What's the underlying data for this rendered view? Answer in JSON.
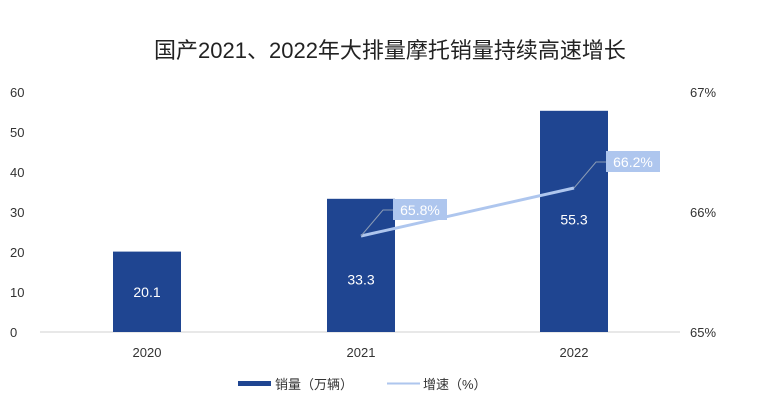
{
  "chart_data": {
    "type": "bar",
    "title": "国产2021、2022年大排量摩托销量持续高速增长",
    "categories": [
      "2020",
      "2021",
      "2022"
    ],
    "series": [
      {
        "name": "销量（万辆）",
        "type": "bar",
        "axis": "left",
        "values": [
          20.1,
          33.3,
          55.3
        ],
        "labels": [
          "20.1",
          "33.3",
          "55.3"
        ],
        "color": "#1f4591"
      },
      {
        "name": "增速（%）",
        "type": "line",
        "axis": "right",
        "values": [
          null,
          65.8,
          66.2
        ],
        "labels": [
          "",
          "65.8%",
          "66.2%"
        ],
        "color": "#aec6ee"
      }
    ],
    "y_left": {
      "range": [
        0,
        60
      ],
      "ticks": [
        "0",
        "10",
        "20",
        "30",
        "40",
        "50",
        "60"
      ]
    },
    "y_right": {
      "range": [
        65,
        67
      ],
      "ticks": [
        "65%",
        "66%",
        "67%"
      ]
    },
    "grid": false,
    "legend": "bottom"
  }
}
